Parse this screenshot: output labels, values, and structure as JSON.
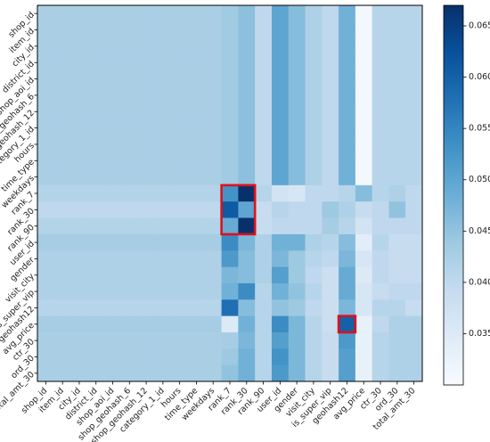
{
  "chart_data": {
    "type": "heatmap",
    "title": "",
    "xlabel": "",
    "ylabel": "",
    "rows": [
      "shop_id",
      "item_id",
      "city_id",
      "district_id",
      "shop_aoi_id",
      "shop_geohash_6",
      "shop_geohash_12",
      "category_1_id",
      "hours",
      "time_type",
      "weekdays",
      "rank_7",
      "rank_30",
      "rank_90",
      "user_id",
      "gender",
      "visit_city",
      "is_super_vip",
      "geohash12",
      "avg_price",
      "ctr_30",
      "ord_30",
      "total_amt_30"
    ],
    "columns": [
      "shop_id",
      "item_id",
      "city_id",
      "district_id",
      "shop_aoi_id",
      "shop_geohash_6",
      "shop_geohash_12",
      "category_1_id",
      "hours",
      "time_type",
      "weekdays",
      "rank_7",
      "rank_30",
      "rank_90",
      "user_id",
      "gender",
      "visit_city",
      "is_super_vip",
      "geohash12",
      "avg_price",
      "ctr_30",
      "ord_30",
      "total_amt_30"
    ],
    "values": [
      [
        0.0425,
        0.0425,
        0.0425,
        0.0425,
        0.0425,
        0.0425,
        0.0425,
        0.0425,
        0.0425,
        0.0425,
        0.0425,
        0.0435,
        0.0455,
        0.04,
        0.05,
        0.046,
        0.042,
        0.04,
        0.048,
        0.031,
        0.041,
        0.041,
        0.041
      ],
      [
        0.0425,
        0.0425,
        0.0425,
        0.0425,
        0.0425,
        0.0425,
        0.0425,
        0.0425,
        0.0425,
        0.0425,
        0.0425,
        0.0435,
        0.0455,
        0.04,
        0.05,
        0.046,
        0.042,
        0.04,
        0.048,
        0.031,
        0.041,
        0.041,
        0.041
      ],
      [
        0.0425,
        0.0425,
        0.0425,
        0.0425,
        0.0425,
        0.0425,
        0.0425,
        0.0425,
        0.0425,
        0.0425,
        0.0425,
        0.0435,
        0.0455,
        0.04,
        0.05,
        0.046,
        0.042,
        0.04,
        0.048,
        0.031,
        0.041,
        0.041,
        0.041
      ],
      [
        0.0425,
        0.0425,
        0.0425,
        0.0425,
        0.0425,
        0.0425,
        0.0425,
        0.0425,
        0.0425,
        0.0425,
        0.0425,
        0.0435,
        0.0455,
        0.04,
        0.05,
        0.046,
        0.042,
        0.04,
        0.048,
        0.031,
        0.041,
        0.041,
        0.041
      ],
      [
        0.0425,
        0.0425,
        0.0425,
        0.0425,
        0.0425,
        0.0425,
        0.0425,
        0.0425,
        0.0425,
        0.0425,
        0.0425,
        0.0435,
        0.0455,
        0.04,
        0.05,
        0.046,
        0.042,
        0.04,
        0.048,
        0.031,
        0.041,
        0.041,
        0.041
      ],
      [
        0.0425,
        0.0425,
        0.0425,
        0.0425,
        0.0425,
        0.0425,
        0.0425,
        0.0425,
        0.0425,
        0.0425,
        0.0425,
        0.0435,
        0.0455,
        0.04,
        0.05,
        0.046,
        0.042,
        0.04,
        0.048,
        0.031,
        0.041,
        0.041,
        0.041
      ],
      [
        0.0425,
        0.0425,
        0.0425,
        0.0425,
        0.0425,
        0.0425,
        0.0425,
        0.0425,
        0.0425,
        0.0425,
        0.0425,
        0.0435,
        0.0455,
        0.04,
        0.05,
        0.046,
        0.042,
        0.04,
        0.048,
        0.031,
        0.041,
        0.041,
        0.041
      ],
      [
        0.0425,
        0.0425,
        0.0425,
        0.0425,
        0.0425,
        0.0425,
        0.0425,
        0.0425,
        0.0425,
        0.0425,
        0.0425,
        0.0435,
        0.0455,
        0.04,
        0.05,
        0.046,
        0.042,
        0.04,
        0.048,
        0.031,
        0.041,
        0.041,
        0.041
      ],
      [
        0.0425,
        0.0425,
        0.0425,
        0.0425,
        0.0425,
        0.0425,
        0.0425,
        0.0425,
        0.0425,
        0.0425,
        0.0425,
        0.0435,
        0.0455,
        0.04,
        0.05,
        0.046,
        0.042,
        0.04,
        0.048,
        0.031,
        0.041,
        0.041,
        0.041
      ],
      [
        0.0425,
        0.0425,
        0.0425,
        0.0425,
        0.0425,
        0.0425,
        0.0425,
        0.0425,
        0.0425,
        0.0425,
        0.0425,
        0.0435,
        0.0455,
        0.04,
        0.05,
        0.046,
        0.042,
        0.04,
        0.048,
        0.031,
        0.041,
        0.041,
        0.041
      ],
      [
        0.0425,
        0.0425,
        0.0425,
        0.0425,
        0.0425,
        0.0425,
        0.0425,
        0.0425,
        0.0425,
        0.0425,
        0.0425,
        0.0435,
        0.0455,
        0.04,
        0.05,
        0.046,
        0.042,
        0.04,
        0.048,
        0.031,
        0.041,
        0.041,
        0.041
      ],
      [
        0.0415,
        0.0415,
        0.0415,
        0.0415,
        0.0415,
        0.0415,
        0.0415,
        0.0415,
        0.0415,
        0.0415,
        0.0415,
        0.053,
        0.067,
        0.041,
        0.037,
        0.036,
        0.04,
        0.04,
        0.041,
        0.046,
        0.041,
        0.042,
        0.04
      ],
      [
        0.04,
        0.04,
        0.04,
        0.04,
        0.04,
        0.04,
        0.04,
        0.04,
        0.04,
        0.04,
        0.04,
        0.061,
        0.05,
        0.039,
        0.041,
        0.04,
        0.04,
        0.044,
        0.042,
        0.039,
        0.04,
        0.045,
        0.04
      ],
      [
        0.0415,
        0.0415,
        0.0415,
        0.0415,
        0.0415,
        0.0415,
        0.0415,
        0.0415,
        0.0415,
        0.0415,
        0.0415,
        0.049,
        0.069,
        0.039,
        0.04,
        0.04,
        0.04,
        0.043,
        0.041,
        0.037,
        0.04,
        0.04,
        0.04
      ],
      [
        0.043,
        0.043,
        0.043,
        0.043,
        0.043,
        0.043,
        0.043,
        0.043,
        0.043,
        0.043,
        0.043,
        0.054,
        0.047,
        0.042,
        0.048,
        0.048,
        0.042,
        0.041,
        0.046,
        0.034,
        0.041,
        0.039,
        0.039
      ],
      [
        0.042,
        0.042,
        0.042,
        0.042,
        0.042,
        0.042,
        0.042,
        0.042,
        0.042,
        0.042,
        0.042,
        0.052,
        0.046,
        0.042,
        0.047,
        0.044,
        0.041,
        0.04,
        0.047,
        0.036,
        0.04,
        0.039,
        0.039
      ],
      [
        0.042,
        0.042,
        0.042,
        0.042,
        0.042,
        0.042,
        0.042,
        0.042,
        0.042,
        0.042,
        0.042,
        0.047,
        0.046,
        0.042,
        0.051,
        0.044,
        0.04,
        0.038,
        0.049,
        0.035,
        0.04,
        0.039,
        0.039
      ],
      [
        0.042,
        0.042,
        0.042,
        0.042,
        0.042,
        0.042,
        0.042,
        0.042,
        0.042,
        0.042,
        0.042,
        0.048,
        0.054,
        0.041,
        0.048,
        0.045,
        0.041,
        0.038,
        0.049,
        0.036,
        0.039,
        0.04,
        0.04
      ],
      [
        0.041,
        0.041,
        0.041,
        0.041,
        0.041,
        0.041,
        0.041,
        0.041,
        0.041,
        0.041,
        0.041,
        0.058,
        0.046,
        0.041,
        0.045,
        0.044,
        0.04,
        0.038,
        0.047,
        0.036,
        0.041,
        0.041,
        0.039
      ],
      [
        0.043,
        0.043,
        0.043,
        0.043,
        0.043,
        0.043,
        0.043,
        0.043,
        0.043,
        0.043,
        0.043,
        0.035,
        0.048,
        0.041,
        0.054,
        0.047,
        0.041,
        0.038,
        0.06,
        0.033,
        0.04,
        0.042,
        0.042
      ],
      [
        0.0425,
        0.0425,
        0.0425,
        0.0425,
        0.0425,
        0.0425,
        0.0425,
        0.0425,
        0.0425,
        0.0425,
        0.0425,
        0.043,
        0.047,
        0.041,
        0.051,
        0.047,
        0.041,
        0.039,
        0.052,
        0.033,
        0.041,
        0.042,
        0.042
      ],
      [
        0.0425,
        0.0425,
        0.0425,
        0.0425,
        0.0425,
        0.0425,
        0.0425,
        0.0425,
        0.0425,
        0.0425,
        0.0425,
        0.044,
        0.048,
        0.041,
        0.053,
        0.047,
        0.041,
        0.039,
        0.051,
        0.033,
        0.041,
        0.042,
        0.042
      ],
      [
        0.0425,
        0.0425,
        0.0425,
        0.0425,
        0.0425,
        0.0425,
        0.0425,
        0.0425,
        0.0425,
        0.0425,
        0.0425,
        0.045,
        0.048,
        0.041,
        0.052,
        0.047,
        0.041,
        0.039,
        0.051,
        0.033,
        0.041,
        0.042,
        0.042
      ]
    ],
    "colorbar": {
      "min": 0.03,
      "max": 0.067,
      "ticks": [
        "0.035",
        "0.040",
        "0.045",
        "0.050",
        "0.055",
        "0.060",
        "0.065"
      ],
      "colors": [
        "#f7fbff",
        "#deebf7",
        "#c6dbef",
        "#9ecae1",
        "#6baed6",
        "#4292c6",
        "#2171b5",
        "#08519c",
        "#08306b"
      ]
    },
    "highlights": [
      {
        "rows": [
          "rank_7",
          "rank_90"
        ],
        "columns": [
          "rank_7",
          "rank_30"
        ],
        "color": "#e0101a"
      },
      {
        "rows": [
          "avg_price",
          "avg_price"
        ],
        "columns": [
          "geohash12",
          "geohash12"
        ],
        "color": "#e0101a"
      }
    ],
    "grid": false
  }
}
